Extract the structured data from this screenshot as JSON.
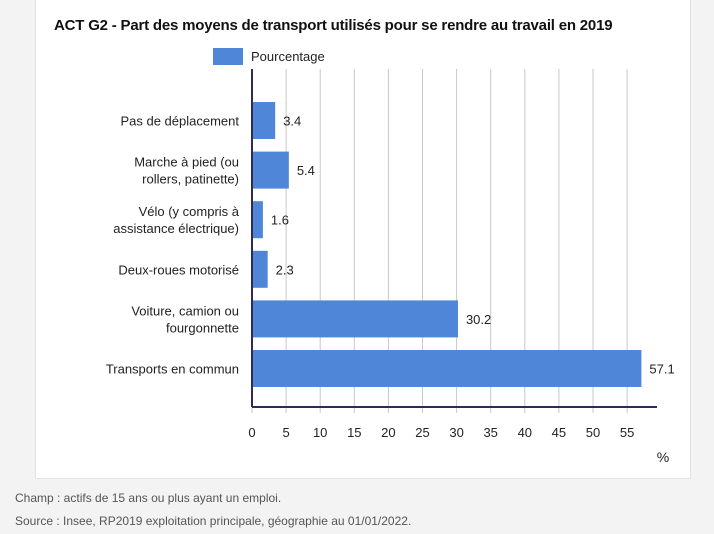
{
  "chart_data": {
    "type": "bar",
    "orientation": "horizontal",
    "title": "ACT G2 - Part des moyens de transport utilisés pour se rendre au travail en 2019",
    "categories": [
      [
        "Pas de déplacement"
      ],
      [
        "Marche à pied (ou",
        "rollers, patinette)"
      ],
      [
        "Vélo (y compris à",
        "assistance électrique)"
      ],
      [
        "Deux-roues motorisé"
      ],
      [
        "Voiture, camion ou",
        "fourgonnette"
      ],
      [
        "Transports en commun"
      ]
    ],
    "series": [
      {
        "name": "Pourcentage",
        "values": [
          3.4,
          5.4,
          1.6,
          2.3,
          30.2,
          57.1
        ],
        "labels": [
          "3.4",
          "5.4",
          "1.6",
          "2.3",
          "30.2",
          "57.1"
        ],
        "color": "#4f86d8"
      }
    ],
    "xlabel": "%",
    "ylabel": "",
    "xlim": [
      0,
      59
    ],
    "xticks": [
      "0",
      "5",
      "10",
      "15",
      "20",
      "25",
      "30",
      "35",
      "40",
      "45",
      "50",
      "55"
    ],
    "grid": "vertical",
    "legend": "top"
  },
  "notes": {
    "champ": "Champ : actifs de 15 ans ou plus ayant un emploi.",
    "source": "Source : Insee, RP2019 exploitation principale, géographie au 01/01/2022."
  },
  "colors": {
    "bar": "#4f86d8",
    "axis": "#2e2a5a",
    "grid": "#c8c8c8"
  }
}
